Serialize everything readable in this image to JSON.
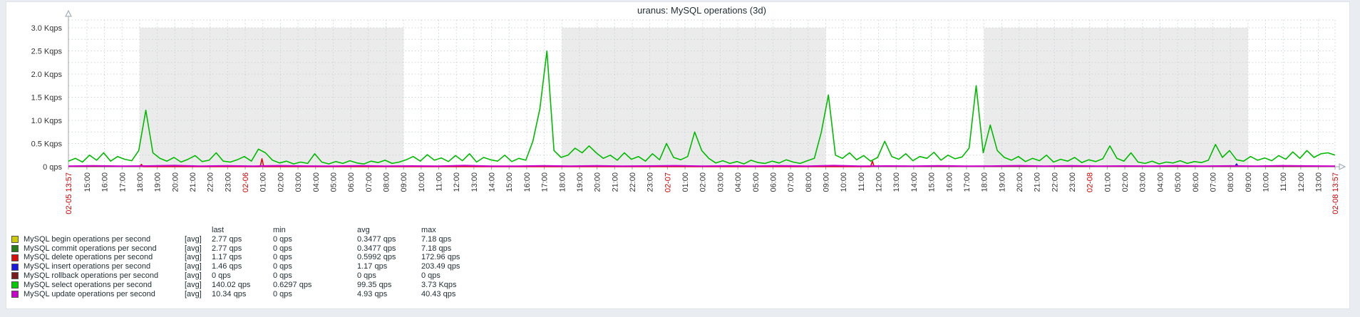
{
  "panel": {
    "title": "uranus: MySQL operations (3d)"
  },
  "colors": {
    "page_bg": "#e9edf1",
    "panel_bg": "#ffffff",
    "panel_border": "#dfe4e7",
    "band": "#ebebeb",
    "grid": "#ccd5d9",
    "axis": "#9aa8b0",
    "tick_text": "#333333",
    "red_text": "#cc0000",
    "title_text": "#1f2c33"
  },
  "chart_data": {
    "type": "line",
    "title": "uranus: MySQL operations (3d)",
    "xlabel": "",
    "ylabel": "qps",
    "ylim": [
      0,
      3.2
    ],
    "x_hours_span": 72,
    "grid": "dashed, minor every 0.25 Kqps and every hour",
    "legend_position": "bottom-left table",
    "y_ticks": [
      {
        "v": 3.0,
        "label": "3.0 Kqps"
      },
      {
        "v": 2.5,
        "label": "2.5 Kqps"
      },
      {
        "v": 2.0,
        "label": "2.0 Kqps"
      },
      {
        "v": 1.5,
        "label": "1.5 Kqps"
      },
      {
        "v": 1.0,
        "label": "1.0 Kqps"
      },
      {
        "v": 0.5,
        "label": "0.5 Kqps"
      },
      {
        "v": 0,
        "label": "0 qps"
      }
    ],
    "non_working_bands_t": [
      [
        4.05,
        19.05
      ],
      [
        28.05,
        43.05
      ],
      [
        52.05,
        67.05
      ]
    ],
    "x_labels": [
      [
        0,
        "02-05 13:57",
        1
      ],
      [
        1.05,
        "15:00",
        0
      ],
      [
        2.05,
        "16:00",
        0
      ],
      [
        3.05,
        "17:00",
        0
      ],
      [
        4.05,
        "18:00",
        0
      ],
      [
        5.05,
        "19:00",
        0
      ],
      [
        6.05,
        "20:00",
        0
      ],
      [
        7.05,
        "21:00",
        0
      ],
      [
        8.05,
        "22:00",
        0
      ],
      [
        9.05,
        "23:00",
        0
      ],
      [
        10.05,
        "02-06",
        1
      ],
      [
        11.05,
        "01:00",
        0
      ],
      [
        12.05,
        "02:00",
        0
      ],
      [
        13.05,
        "03:00",
        0
      ],
      [
        14.05,
        "04:00",
        0
      ],
      [
        15.05,
        "05:00",
        0
      ],
      [
        16.05,
        "06:00",
        0
      ],
      [
        17.05,
        "07:00",
        0
      ],
      [
        18.05,
        "08:00",
        0
      ],
      [
        19.05,
        "09:00",
        0
      ],
      [
        20.05,
        "10:00",
        0
      ],
      [
        21.05,
        "11:00",
        0
      ],
      [
        22.05,
        "12:00",
        0
      ],
      [
        23.05,
        "13:00",
        0
      ],
      [
        24.05,
        "14:00",
        0
      ],
      [
        25.05,
        "15:00",
        0
      ],
      [
        26.05,
        "16:00",
        0
      ],
      [
        27.05,
        "17:00",
        0
      ],
      [
        28.05,
        "18:00",
        0
      ],
      [
        29.05,
        "19:00",
        0
      ],
      [
        30.05,
        "20:00",
        0
      ],
      [
        31.05,
        "21:00",
        0
      ],
      [
        32.05,
        "22:00",
        0
      ],
      [
        33.05,
        "23:00",
        0
      ],
      [
        34.05,
        "02-07",
        1
      ],
      [
        35.05,
        "01:00",
        0
      ],
      [
        36.05,
        "02:00",
        0
      ],
      [
        37.05,
        "03:00",
        0
      ],
      [
        38.05,
        "04:00",
        0
      ],
      [
        39.05,
        "05:00",
        0
      ],
      [
        40.05,
        "06:00",
        0
      ],
      [
        41.05,
        "07:00",
        0
      ],
      [
        42.05,
        "08:00",
        0
      ],
      [
        43.05,
        "09:00",
        0
      ],
      [
        44.05,
        "10:00",
        0
      ],
      [
        45.05,
        "11:00",
        0
      ],
      [
        46.05,
        "12:00",
        0
      ],
      [
        47.05,
        "13:00",
        0
      ],
      [
        48.05,
        "14:00",
        0
      ],
      [
        49.05,
        "15:00",
        0
      ],
      [
        50.05,
        "16:00",
        0
      ],
      [
        51.05,
        "17:00",
        0
      ],
      [
        52.05,
        "18:00",
        0
      ],
      [
        53.05,
        "19:00",
        0
      ],
      [
        54.05,
        "20:00",
        0
      ],
      [
        55.05,
        "21:00",
        0
      ],
      [
        56.05,
        "22:00",
        0
      ],
      [
        57.05,
        "23:00",
        0
      ],
      [
        58.05,
        "02-08",
        1
      ],
      [
        59.05,
        "01:00",
        0
      ],
      [
        60.05,
        "02:00",
        0
      ],
      [
        61.05,
        "03:00",
        0
      ],
      [
        62.05,
        "04:00",
        0
      ],
      [
        63.05,
        "05:00",
        0
      ],
      [
        64.05,
        "06:00",
        0
      ],
      [
        65.05,
        "07:00",
        0
      ],
      [
        66.05,
        "08:00",
        0
      ],
      [
        67.05,
        "09:00",
        0
      ],
      [
        68.05,
        "10:00",
        0
      ],
      [
        69.05,
        "11:00",
        0
      ],
      [
        70.05,
        "12:00",
        0
      ],
      [
        71.05,
        "13:00",
        0
      ],
      [
        72,
        "02-08 13:57",
        1
      ]
    ],
    "series": [
      {
        "name": "MySQL begin operations per second",
        "color": "#cccc00",
        "width": 1,
        "points": [
          [
            0,
            0.003
          ],
          [
            72,
            0.003
          ]
        ]
      },
      {
        "name": "MySQL commit operations per second",
        "color": "#267c19",
        "width": 1,
        "points": [
          [
            0,
            0.003
          ],
          [
            72,
            0.003
          ]
        ]
      },
      {
        "name": "MySQL rollback operations per second",
        "color": "#7a1a1a",
        "width": 1,
        "points": [
          [
            0,
            0
          ],
          [
            72,
            0
          ]
        ]
      },
      {
        "name": "MySQL delete operations per second",
        "color": "#dd0d0d",
        "width": 1.6,
        "points": [
          [
            4.05,
            0
          ],
          [
            4.15,
            0.05
          ],
          [
            4.25,
            0
          ],
          [
            10.9,
            0
          ],
          [
            11.0,
            0.17
          ],
          [
            11.1,
            0
          ],
          [
            45.6,
            0
          ],
          [
            45.7,
            0.12
          ],
          [
            45.8,
            0
          ]
        ]
      },
      {
        "name": "MySQL insert operations per second",
        "color": "#1a1ae6",
        "width": 1.6,
        "points": [
          [
            66.3,
            0
          ],
          [
            66.4,
            0.06
          ],
          [
            66.5,
            0
          ]
        ]
      },
      {
        "name": "MySQL select operations per second",
        "color": "#00bb00",
        "width": 1.6,
        "t0": 0,
        "dt": 0.4,
        "values": [
          0.12,
          0.18,
          0.1,
          0.25,
          0.14,
          0.3,
          0.12,
          0.22,
          0.16,
          0.13,
          0.35,
          1.22,
          0.3,
          0.18,
          0.12,
          0.2,
          0.1,
          0.16,
          0.24,
          0.11,
          0.14,
          0.3,
          0.12,
          0.1,
          0.15,
          0.22,
          0.12,
          0.38,
          0.3,
          0.14,
          0.08,
          0.12,
          0.06,
          0.1,
          0.07,
          0.28,
          0.1,
          0.06,
          0.11,
          0.07,
          0.13,
          0.08,
          0.06,
          0.12,
          0.09,
          0.14,
          0.07,
          0.1,
          0.15,
          0.22,
          0.12,
          0.26,
          0.14,
          0.19,
          0.11,
          0.24,
          0.13,
          0.28,
          0.1,
          0.2,
          0.15,
          0.12,
          0.25,
          0.11,
          0.18,
          0.14,
          0.55,
          1.25,
          2.5,
          0.35,
          0.2,
          0.25,
          0.4,
          0.3,
          0.45,
          0.3,
          0.18,
          0.25,
          0.14,
          0.3,
          0.16,
          0.22,
          0.12,
          0.28,
          0.15,
          0.5,
          0.2,
          0.15,
          0.22,
          0.75,
          0.35,
          0.18,
          0.08,
          0.13,
          0.07,
          0.11,
          0.06,
          0.14,
          0.09,
          0.07,
          0.12,
          0.08,
          0.15,
          0.1,
          0.07,
          0.13,
          0.18,
          0.75,
          1.55,
          0.25,
          0.18,
          0.3,
          0.15,
          0.24,
          0.12,
          0.2,
          0.55,
          0.22,
          0.16,
          0.28,
          0.13,
          0.22,
          0.18,
          0.31,
          0.14,
          0.25,
          0.17,
          0.21,
          0.4,
          1.75,
          0.3,
          0.9,
          0.35,
          0.2,
          0.14,
          0.22,
          0.11,
          0.18,
          0.13,
          0.25,
          0.1,
          0.16,
          0.12,
          0.2,
          0.09,
          0.15,
          0.11,
          0.17,
          0.45,
          0.18,
          0.12,
          0.3,
          0.1,
          0.07,
          0.12,
          0.06,
          0.1,
          0.08,
          0.13,
          0.07,
          0.11,
          0.09,
          0.14,
          0.48,
          0.2,
          0.35,
          0.15,
          0.12,
          0.22,
          0.14,
          0.19,
          0.13,
          0.24,
          0.16,
          0.32,
          0.18,
          0.35,
          0.2,
          0.28,
          0.3,
          0.25
        ]
      },
      {
        "name": "MySQL update operations per second",
        "color": "#cc00cc",
        "width": 2,
        "t0": 0,
        "dt": 1.5,
        "values": [
          0.012,
          0.02,
          0.01,
          0.015,
          0.025,
          0.012,
          0.018,
          0.01,
          0.022,
          0.014,
          0.01,
          0.02,
          0.012,
          0.016,
          0.01,
          0.024,
          0.013,
          0.01,
          0.018,
          0.012,
          0.02,
          0.01,
          0.015,
          0.022,
          0.011,
          0.017,
          0.01,
          0.02,
          0.013,
          0.025,
          0.01,
          0.016,
          0.012,
          0.02,
          0.01,
          0.014,
          0.022,
          0.01,
          0.018,
          0.012,
          0.015,
          0.01,
          0.02,
          0.013,
          0.017,
          0.01,
          0.022,
          0.015,
          0.012
        ]
      }
    ],
    "legend": {
      "headers": [
        "last",
        "min",
        "avg",
        "max"
      ],
      "rows": [
        {
          "color": "#cccc00",
          "name": "MySQL begin operations per second",
          "func": "[avg]",
          "last": "2.77 qps",
          "min": "0 qps",
          "avg": "0.3477 qps",
          "max": "7.18 qps"
        },
        {
          "color": "#267c19",
          "name": "MySQL commit operations per second",
          "func": "[avg]",
          "last": "2.77 qps",
          "min": "0 qps",
          "avg": "0.3477 qps",
          "max": "7.18 qps"
        },
        {
          "color": "#dd0d0d",
          "name": "MySQL delete operations per second",
          "func": "[avg]",
          "last": "1.17 qps",
          "min": "0 qps",
          "avg": "0.5992 qps",
          "max": "172.96 qps"
        },
        {
          "color": "#1a1ae6",
          "name": "MySQL insert operations per second",
          "func": "[avg]",
          "last": "1.46 qps",
          "min": "0 qps",
          "avg": "1.17 qps",
          "max": "203.49 qps"
        },
        {
          "color": "#7a1a1a",
          "name": "MySQL rollback operations per second",
          "func": "[avg]",
          "last": "0 qps",
          "min": "0 qps",
          "avg": "0 qps",
          "max": "0 qps"
        },
        {
          "color": "#00cc00",
          "name": "MySQL select operations per second",
          "func": "[avg]",
          "last": "140.02 qps",
          "min": "0.6297 qps",
          "avg": "99.35 qps",
          "max": "3.73 Kqps"
        },
        {
          "color": "#cc00cc",
          "name": "MySQL update operations per second",
          "func": "[avg]",
          "last": "10.34 qps",
          "min": "0 qps",
          "avg": "4.93 qps",
          "max": "40.43 qps"
        }
      ]
    }
  }
}
